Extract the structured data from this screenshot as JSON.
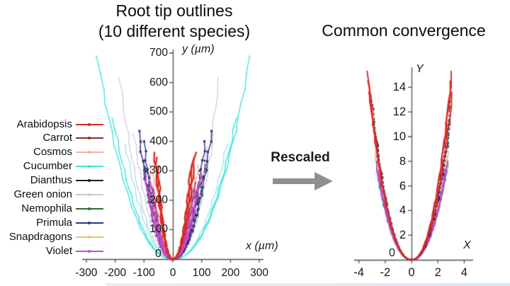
{
  "left_chart": {
    "title_line1": "Root tip outlines",
    "title_line2": "(10 different species)",
    "x_axis": {
      "label": "x (µm)",
      "ticks": [
        -300,
        -200,
        -100,
        0,
        100,
        200,
        300
      ],
      "range": [
        -310,
        310
      ]
    },
    "y_axis": {
      "label": "y (µm)",
      "ticks": [
        100,
        200,
        300,
        400,
        500,
        600,
        700
      ],
      "range": [
        0,
        712
      ],
      "origin_label": "0"
    }
  },
  "right_chart": {
    "title": "Common convergence",
    "x_axis": {
      "label": "X",
      "ticks": [
        -4,
        -2,
        0,
        2,
        4
      ],
      "range": [
        -4.5,
        4.5
      ]
    },
    "y_axis": {
      "label": "Y",
      "ticks": [
        2,
        4,
        6,
        8,
        10,
        12,
        14
      ],
      "range": [
        0,
        15.6
      ],
      "origin_label": "0"
    }
  },
  "middle": {
    "label": "Rescaled",
    "arrow_color": "#8f8f8f"
  },
  "legend": {
    "items": [
      {
        "label": "Arabidopsis",
        "color": "#da2a24"
      },
      {
        "label": "Carrot",
        "color": "#8a2f2a"
      },
      {
        "label": "Cosmos",
        "color": "#f3b29c"
      },
      {
        "label": "Cucumber",
        "color": "#41e4df"
      },
      {
        "label": "Dianthus",
        "color": "#1c1c1c"
      },
      {
        "label": "Green onion",
        "color": "#c9c9d2"
      },
      {
        "label": "Nemophila",
        "color": "#2e6b3a"
      },
      {
        "label": "Primula",
        "color": "#32328c"
      },
      {
        "label": "Snapdragons",
        "color": "#ecc169"
      },
      {
        "label": "Violet",
        "color": "#c44ecf"
      }
    ]
  },
  "chart_data": [
    {
      "type": "line",
      "title": "Root tip outlines (10 different species)",
      "xlabel": "x (µm)",
      "ylabel": "y (µm)",
      "xlim": [
        -310,
        310
      ],
      "ylim": [
        0,
        712
      ],
      "xticks": [
        -300,
        -200,
        -100,
        0,
        100,
        200,
        300
      ],
      "yticks": [
        0,
        100,
        200,
        300,
        400,
        500,
        600,
        700
      ],
      "grid": false,
      "legend_position": "left-outside",
      "shape_power": 2.2,
      "series": [
        {
          "name": "Cucumber",
          "color": "#41e4df",
          "line_width": 1.4,
          "marker": "dot",
          "marker_size": 1.0,
          "dash": [],
          "curves": [
            {
              "x_left": -262,
              "x_right": 268,
              "y_max": 690
            },
            {
              "x_left": -208,
              "x_right": 220,
              "y_max": 478
            },
            {
              "x_left": -165,
              "x_right": 188,
              "y_max": 390,
              "color": "#9febe7"
            }
          ]
        },
        {
          "name": "Green onion",
          "color": "#c9c9d2",
          "line_width": 1.1,
          "marker": "dot",
          "marker_size": 1.0,
          "dash": [],
          "curves": [
            {
              "x_left": -185,
              "x_right": 160,
              "y_max": 615
            },
            {
              "x_left": -135,
              "x_right": 142,
              "y_max": 425
            },
            {
              "x_left": -112,
              "x_right": 120,
              "y_max": 380
            }
          ]
        },
        {
          "name": "Cosmos",
          "color": "#f3b29c",
          "line_width": 1.4,
          "marker": "dot",
          "marker_size": 1.0,
          "dash": [],
          "curves": [
            {
              "x_left": -82,
              "x_right": 88,
              "y_max": 320
            },
            {
              "x_left": -70,
              "x_right": 76,
              "y_max": 290
            }
          ]
        },
        {
          "name": "Snapdragons",
          "color": "#ecc169",
          "line_width": 1.4,
          "marker": "dot",
          "marker_size": 1.0,
          "dash": [],
          "curves": [
            {
              "x_left": -70,
              "x_right": 72,
              "y_max": 230
            },
            {
              "x_left": -62,
              "x_right": 66,
              "y_max": 205
            }
          ]
        },
        {
          "name": "Nemophila",
          "color": "#2e6b3a",
          "line_width": 1.3,
          "marker": "dot",
          "marker_size": 1.0,
          "dash": [],
          "curves": [
            {
              "x_left": -90,
              "x_right": 95,
              "y_max": 255
            },
            {
              "x_left": -78,
              "x_right": 83,
              "y_max": 225
            }
          ]
        },
        {
          "name": "Carrot",
          "color": "#8a2f2a",
          "line_width": 1.3,
          "marker": "dot",
          "marker_size": 1.0,
          "dash": [],
          "curves": [
            {
              "x_left": -76,
              "x_right": 80,
              "y_max": 260
            },
            {
              "x_left": -68,
              "x_right": 71,
              "y_max": 235
            }
          ]
        },
        {
          "name": "Dianthus",
          "color": "#1c1c1c",
          "line_width": 1.2,
          "marker": "dot",
          "marker_size": 1.2,
          "dash": [
            5,
            3
          ],
          "curves": [
            {
              "x_left": -102,
              "x_right": 114,
              "y_max": 335
            },
            {
              "x_left": -88,
              "x_right": 96,
              "y_max": 300
            }
          ]
        },
        {
          "name": "Primula",
          "color": "#32328c",
          "line_width": 1.4,
          "marker": "square",
          "marker_size": 1.6,
          "dash": [],
          "curves": [
            {
              "x_left": -118,
              "x_right": 135,
              "y_max": 435
            },
            {
              "x_left": -100,
              "x_right": 112,
              "y_max": 400
            }
          ]
        },
        {
          "name": "Violet",
          "color": "#c44ecf",
          "line_width": 2.2,
          "marker": "dot",
          "marker_size": 1.1,
          "dash": [],
          "curves": [
            {
              "x_left": -96,
              "x_right": 96,
              "y_max": 285
            },
            {
              "x_left": -82,
              "x_right": 87,
              "y_max": 262
            },
            {
              "x_left": -70,
              "x_right": 74,
              "y_max": 240
            }
          ]
        },
        {
          "name": "Arabidopsis",
          "color": "#da2a24",
          "line_width": 2.3,
          "marker": "dot",
          "marker_size": 1.3,
          "dash": [],
          "curves": [
            {
              "x_left": -64,
              "x_right": 78,
              "y_max": 362
            },
            {
              "x_left": -58,
              "x_right": 70,
              "y_max": 345
            },
            {
              "x_left": -52,
              "x_right": 62,
              "y_max": 315
            }
          ]
        }
      ]
    },
    {
      "type": "line",
      "title": "Common convergence",
      "xlabel": "X",
      "ylabel": "Y",
      "xlim": [
        -4.5,
        4.5
      ],
      "ylim": [
        0,
        15.6
      ],
      "xticks": [
        -4,
        -2,
        0,
        2,
        4
      ],
      "yticks": [
        0,
        2,
        4,
        6,
        8,
        10,
        12,
        14
      ],
      "grid": false,
      "legend_position": "none",
      "shape_power": 2.2,
      "series": [
        {
          "name": "Cucumber",
          "color": "#41e4df",
          "line_width": 1.2,
          "marker": "dot",
          "marker_size": 0.9,
          "dash": [],
          "curves": [
            {
              "x_left": -2.7,
              "x_right": 2.75,
              "y_max": 7.6
            },
            {
              "x_left": -2.6,
              "x_right": 2.62,
              "y_max": 7.0
            }
          ]
        },
        {
          "name": "Green onion",
          "color": "#c9c9d2",
          "line_width": 1.1,
          "marker": "dot",
          "marker_size": 0.9,
          "dash": [],
          "curves": [
            {
              "x_left": -2.8,
              "x_right": 2.75,
              "y_max": 8.8
            },
            {
              "x_left": -2.68,
              "x_right": 2.7,
              "y_max": 8.1
            }
          ]
        },
        {
          "name": "Cosmos",
          "color": "#f3b29c",
          "line_width": 1.2,
          "marker": "dot",
          "marker_size": 0.9,
          "dash": [],
          "curves": [
            {
              "x_left": -2.75,
              "x_right": 2.8,
              "y_max": 8.6
            }
          ]
        },
        {
          "name": "Snapdragons",
          "color": "#ecc169",
          "line_width": 1.3,
          "marker": "dot",
          "marker_size": 0.9,
          "dash": [],
          "curves": [
            {
              "x_left": -2.6,
              "x_right": 2.66,
              "y_max": 7.3
            }
          ]
        },
        {
          "name": "Nemophila",
          "color": "#2e6b3a",
          "line_width": 1.2,
          "marker": "dot",
          "marker_size": 0.9,
          "dash": [],
          "curves": [
            {
              "x_left": -2.58,
              "x_right": 2.6,
              "y_max": 7.1
            }
          ]
        },
        {
          "name": "Carrot",
          "color": "#8a2f2a",
          "line_width": 1.2,
          "marker": "dot",
          "marker_size": 0.9,
          "dash": [],
          "curves": [
            {
              "x_left": -2.7,
              "x_right": 2.72,
              "y_max": 8.0
            }
          ]
        },
        {
          "name": "Violet",
          "color": "#c44ecf",
          "line_width": 1.8,
          "marker": "dot",
          "marker_size": 1.0,
          "dash": [],
          "curves": [
            {
              "x_left": -2.66,
              "x_right": 2.7,
              "y_max": 7.8
            },
            {
              "x_left": -2.58,
              "x_right": 2.62,
              "y_max": 7.2
            }
          ]
        },
        {
          "name": "Primula",
          "color": "#32328c",
          "line_width": 1.3,
          "marker": "square",
          "marker_size": 1.3,
          "dash": [],
          "curves": [
            {
              "x_left": -2.85,
              "x_right": 2.9,
              "y_max": 11.2
            }
          ]
        },
        {
          "name": "Dianthus",
          "color": "#1c1c1c",
          "line_width": 1.1,
          "marker": "dot",
          "marker_size": 1.1,
          "dash": [
            4,
            2.5
          ],
          "curves": [
            {
              "x_left": -3.05,
              "x_right": 3.0,
              "y_max": 13.4
            },
            {
              "x_left": -2.9,
              "x_right": 2.96,
              "y_max": 11.0
            }
          ]
        },
        {
          "name": "Arabidopsis",
          "color": "#da2a24",
          "line_width": 1.9,
          "marker": "dot",
          "marker_size": 1.1,
          "dash": [],
          "curves": [
            {
              "x_left": -3.38,
              "x_right": 3.06,
              "y_max": 15.3
            },
            {
              "x_left": -3.28,
              "x_right": 3.0,
              "y_max": 14.5
            },
            {
              "x_left": -3.18,
              "x_right": 3.12,
              "y_max": 13.6
            }
          ]
        }
      ]
    }
  ]
}
